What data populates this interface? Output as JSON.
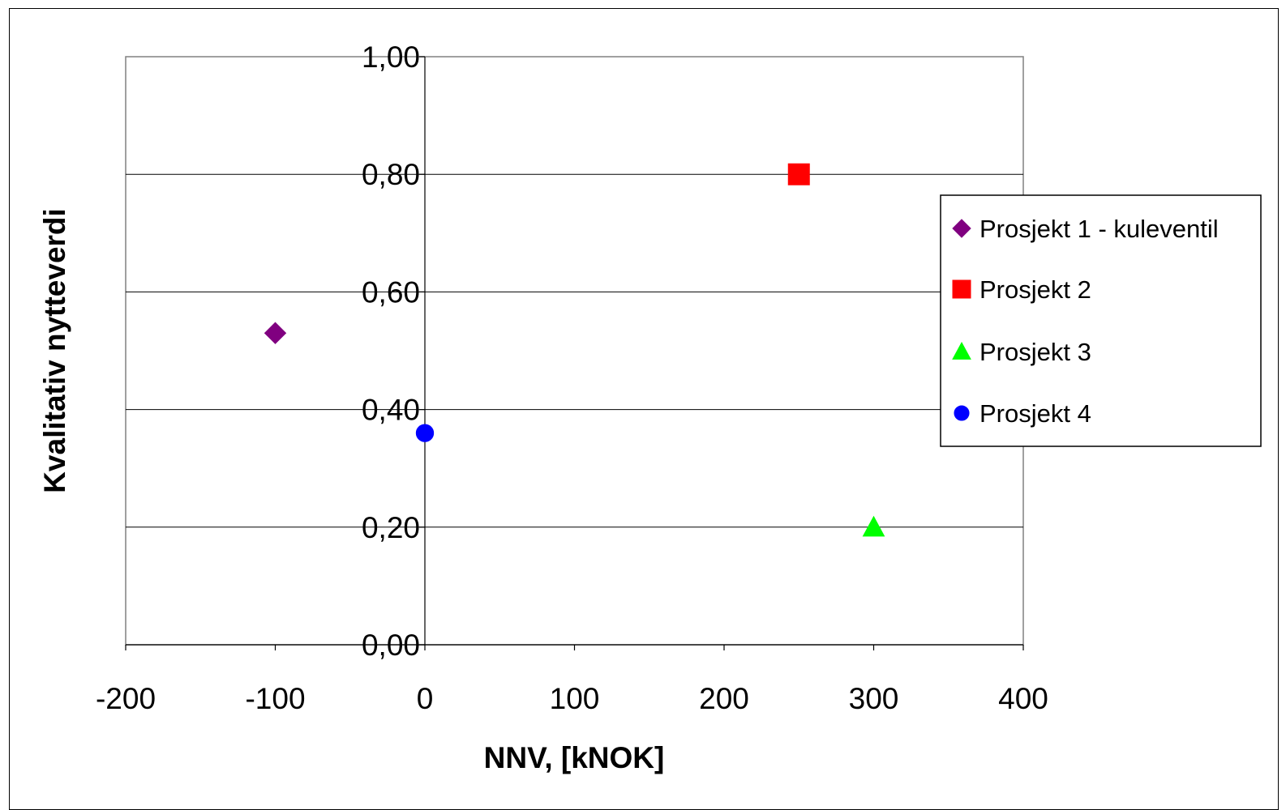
{
  "chart_data": {
    "type": "scatter",
    "title": "",
    "xlabel": "NNV, [kNOK]",
    "ylabel": "Kvalitativ nytteverdi",
    "xlim": [
      -200,
      400
    ],
    "ylim": [
      0,
      1
    ],
    "x_ticks": [
      -200,
      -100,
      0,
      100,
      200,
      300,
      400
    ],
    "x_tick_labels": [
      "-200",
      "-100",
      "0",
      "100",
      "200",
      "300",
      "400"
    ],
    "y_ticks": [
      0,
      0.2,
      0.4,
      0.6,
      0.8,
      1.0
    ],
    "y_tick_labels": [
      "0,00",
      "0,20",
      "0,40",
      "0,60",
      "0,80",
      "1,00"
    ],
    "grid": "horizontal major gridlines",
    "legend_position": "right",
    "series": [
      {
        "name": "Prosjekt 1 - kuleventil",
        "marker": "diamond",
        "color": "#800080",
        "points": [
          {
            "x": -100,
            "y": 0.53
          }
        ]
      },
      {
        "name": "Prosjekt 2",
        "marker": "square",
        "color": "#ff0000",
        "points": [
          {
            "x": 250,
            "y": 0.8
          }
        ]
      },
      {
        "name": "Prosjekt 3",
        "marker": "triangle",
        "color": "#00ff00",
        "points": [
          {
            "x": 300,
            "y": 0.2
          }
        ]
      },
      {
        "name": "Prosjekt 4",
        "marker": "circle",
        "color": "#0000ff",
        "points": [
          {
            "x": 0,
            "y": 0.36
          }
        ]
      }
    ]
  }
}
